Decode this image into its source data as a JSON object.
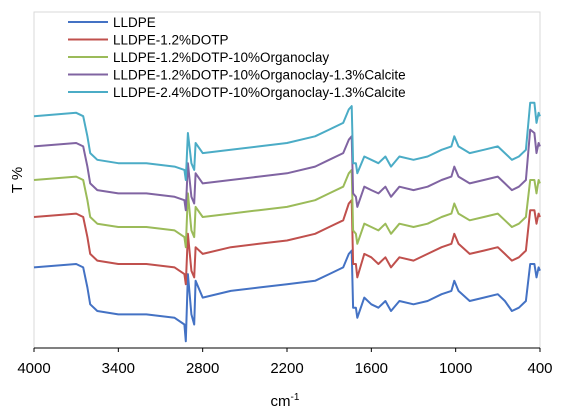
{
  "chart_data": {
    "type": "line",
    "title": "",
    "xlabel": "cm",
    "xlabel_sup": "-1",
    "ylabel": "T %",
    "xlim": [
      4000,
      400
    ],
    "x_reversed": true,
    "x_ticks": [
      4000,
      3400,
      2800,
      2200,
      1600,
      1000,
      400
    ],
    "y_ticks_shown": false,
    "grid": false,
    "legend_position": "top-left",
    "series": [
      {
        "name": "LLDPE",
        "color": "#4472C4",
        "baseline_level": 0.24,
        "points": [
          [
            4000,
            0.24
          ],
          [
            3700,
            0.25
          ],
          [
            3650,
            0.24
          ],
          [
            3620,
            0.18
          ],
          [
            3600,
            0.13
          ],
          [
            3550,
            0.11
          ],
          [
            3400,
            0.1
          ],
          [
            3200,
            0.1
          ],
          [
            3000,
            0.09
          ],
          [
            2930,
            0.07
          ],
          [
            2920,
            0.02
          ],
          [
            2905,
            0.22
          ],
          [
            2880,
            0.1
          ],
          [
            2860,
            0.07
          ],
          [
            2850,
            0.2
          ],
          [
            2800,
            0.15
          ],
          [
            2600,
            0.17
          ],
          [
            2400,
            0.18
          ],
          [
            2200,
            0.19
          ],
          [
            2000,
            0.2
          ],
          [
            1900,
            0.22
          ],
          [
            1800,
            0.24
          ],
          [
            1760,
            0.28
          ],
          [
            1740,
            0.29
          ],
          [
            1730,
            0.12
          ],
          [
            1710,
            0.12
          ],
          [
            1700,
            0.09
          ],
          [
            1650,
            0.15
          ],
          [
            1600,
            0.13
          ],
          [
            1550,
            0.12
          ],
          [
            1500,
            0.14
          ],
          [
            1460,
            0.11
          ],
          [
            1400,
            0.14
          ],
          [
            1300,
            0.13
          ],
          [
            1200,
            0.14
          ],
          [
            1100,
            0.16
          ],
          [
            1030,
            0.17
          ],
          [
            1010,
            0.2
          ],
          [
            980,
            0.17
          ],
          [
            900,
            0.14
          ],
          [
            800,
            0.15
          ],
          [
            700,
            0.16
          ],
          [
            650,
            0.14
          ],
          [
            600,
            0.11
          ],
          [
            550,
            0.12
          ],
          [
            500,
            0.14
          ],
          [
            470,
            0.25
          ],
          [
            440,
            0.25
          ],
          [
            425,
            0.21
          ],
          [
            410,
            0.24
          ],
          [
            400,
            0.23
          ]
        ]
      },
      {
        "name": "LLDPE-1.2%DOTP",
        "color": "#C0504D",
        "baseline_level": 0.39,
        "points": [
          [
            4000,
            0.39
          ],
          [
            3700,
            0.4
          ],
          [
            3650,
            0.39
          ],
          [
            3620,
            0.33
          ],
          [
            3600,
            0.28
          ],
          [
            3550,
            0.26
          ],
          [
            3400,
            0.25
          ],
          [
            3200,
            0.25
          ],
          [
            3000,
            0.24
          ],
          [
            2930,
            0.22
          ],
          [
            2920,
            0.19
          ],
          [
            2905,
            0.34
          ],
          [
            2880,
            0.23
          ],
          [
            2860,
            0.21
          ],
          [
            2850,
            0.3
          ],
          [
            2800,
            0.28
          ],
          [
            2600,
            0.3
          ],
          [
            2400,
            0.31
          ],
          [
            2200,
            0.32
          ],
          [
            2000,
            0.34
          ],
          [
            1900,
            0.36
          ],
          [
            1800,
            0.38
          ],
          [
            1760,
            0.43
          ],
          [
            1740,
            0.44
          ],
          [
            1730,
            0.25
          ],
          [
            1710,
            0.25
          ],
          [
            1700,
            0.21
          ],
          [
            1650,
            0.28
          ],
          [
            1600,
            0.27
          ],
          [
            1550,
            0.25
          ],
          [
            1500,
            0.27
          ],
          [
            1460,
            0.24
          ],
          [
            1400,
            0.27
          ],
          [
            1300,
            0.26
          ],
          [
            1200,
            0.28
          ],
          [
            1100,
            0.3
          ],
          [
            1030,
            0.31
          ],
          [
            1010,
            0.34
          ],
          [
            980,
            0.31
          ],
          [
            900,
            0.28
          ],
          [
            800,
            0.29
          ],
          [
            700,
            0.3
          ],
          [
            650,
            0.28
          ],
          [
            600,
            0.26
          ],
          [
            550,
            0.27
          ],
          [
            500,
            0.29
          ],
          [
            470,
            0.41
          ],
          [
            440,
            0.41
          ],
          [
            425,
            0.37
          ],
          [
            410,
            0.4
          ],
          [
            400,
            0.39
          ]
        ]
      },
      {
        "name": "LLDPE-1.2%DOTP-10%Organoclay",
        "color": "#9BBB59",
        "baseline_level": 0.5,
        "points": [
          [
            4000,
            0.5
          ],
          [
            3700,
            0.51
          ],
          [
            3650,
            0.5
          ],
          [
            3620,
            0.44
          ],
          [
            3600,
            0.39
          ],
          [
            3550,
            0.37
          ],
          [
            3400,
            0.36
          ],
          [
            3200,
            0.36
          ],
          [
            3000,
            0.35
          ],
          [
            2930,
            0.33
          ],
          [
            2920,
            0.3
          ],
          [
            2905,
            0.46
          ],
          [
            2880,
            0.35
          ],
          [
            2860,
            0.33
          ],
          [
            2850,
            0.42
          ],
          [
            2800,
            0.39
          ],
          [
            2600,
            0.4
          ],
          [
            2400,
            0.41
          ],
          [
            2200,
            0.42
          ],
          [
            2000,
            0.44
          ],
          [
            1900,
            0.46
          ],
          [
            1800,
            0.48
          ],
          [
            1760,
            0.52
          ],
          [
            1740,
            0.53
          ],
          [
            1730,
            0.35
          ],
          [
            1710,
            0.34
          ],
          [
            1700,
            0.31
          ],
          [
            1650,
            0.37
          ],
          [
            1600,
            0.36
          ],
          [
            1550,
            0.35
          ],
          [
            1500,
            0.37
          ],
          [
            1460,
            0.34
          ],
          [
            1400,
            0.37
          ],
          [
            1300,
            0.36
          ],
          [
            1200,
            0.37
          ],
          [
            1100,
            0.39
          ],
          [
            1030,
            0.4
          ],
          [
            1010,
            0.43
          ],
          [
            980,
            0.4
          ],
          [
            900,
            0.38
          ],
          [
            800,
            0.39
          ],
          [
            700,
            0.4
          ],
          [
            650,
            0.38
          ],
          [
            600,
            0.36
          ],
          [
            550,
            0.37
          ],
          [
            500,
            0.39
          ],
          [
            470,
            0.5
          ],
          [
            440,
            0.5
          ],
          [
            425,
            0.46
          ],
          [
            410,
            0.5
          ],
          [
            400,
            0.49
          ]
        ]
      },
      {
        "name": "LLDPE-1.2%DOTP-10%Organoclay-1.3%Calcite",
        "color": "#8064A2",
        "baseline_level": 0.6,
        "points": [
          [
            4000,
            0.6
          ],
          [
            3700,
            0.61
          ],
          [
            3650,
            0.6
          ],
          [
            3620,
            0.54
          ],
          [
            3600,
            0.49
          ],
          [
            3550,
            0.47
          ],
          [
            3400,
            0.46
          ],
          [
            3200,
            0.46
          ],
          [
            3000,
            0.45
          ],
          [
            2930,
            0.44
          ],
          [
            2920,
            0.41
          ],
          [
            2905,
            0.55
          ],
          [
            2880,
            0.45
          ],
          [
            2860,
            0.43
          ],
          [
            2850,
            0.52
          ],
          [
            2800,
            0.49
          ],
          [
            2600,
            0.5
          ],
          [
            2400,
            0.51
          ],
          [
            2200,
            0.52
          ],
          [
            2000,
            0.54
          ],
          [
            1900,
            0.56
          ],
          [
            1800,
            0.58
          ],
          [
            1760,
            0.62
          ],
          [
            1740,
            0.63
          ],
          [
            1730,
            0.46
          ],
          [
            1710,
            0.45
          ],
          [
            1700,
            0.42
          ],
          [
            1650,
            0.48
          ],
          [
            1600,
            0.47
          ],
          [
            1550,
            0.46
          ],
          [
            1500,
            0.48
          ],
          [
            1460,
            0.45
          ],
          [
            1400,
            0.48
          ],
          [
            1300,
            0.47
          ],
          [
            1200,
            0.48
          ],
          [
            1100,
            0.5
          ],
          [
            1030,
            0.51
          ],
          [
            1010,
            0.54
          ],
          [
            980,
            0.51
          ],
          [
            900,
            0.49
          ],
          [
            800,
            0.5
          ],
          [
            700,
            0.51
          ],
          [
            650,
            0.49
          ],
          [
            600,
            0.47
          ],
          [
            550,
            0.48
          ],
          [
            500,
            0.5
          ],
          [
            470,
            0.65
          ],
          [
            440,
            0.64
          ],
          [
            425,
            0.58
          ],
          [
            410,
            0.61
          ],
          [
            400,
            0.6
          ]
        ]
      },
      {
        "name": "LLDPE-2.4%DOTP-10%Organoclay-1.3%Calcite",
        "color": "#4BACC6",
        "baseline_level": 0.69,
        "points": [
          [
            4000,
            0.69
          ],
          [
            3700,
            0.7
          ],
          [
            3650,
            0.69
          ],
          [
            3620,
            0.63
          ],
          [
            3600,
            0.58
          ],
          [
            3550,
            0.56
          ],
          [
            3400,
            0.55
          ],
          [
            3200,
            0.55
          ],
          [
            3000,
            0.54
          ],
          [
            2930,
            0.53
          ],
          [
            2920,
            0.5
          ],
          [
            2905,
            0.64
          ],
          [
            2880,
            0.55
          ],
          [
            2860,
            0.53
          ],
          [
            2850,
            0.61
          ],
          [
            2800,
            0.58
          ],
          [
            2600,
            0.59
          ],
          [
            2400,
            0.6
          ],
          [
            2200,
            0.61
          ],
          [
            2000,
            0.63
          ],
          [
            1900,
            0.65
          ],
          [
            1800,
            0.67
          ],
          [
            1760,
            0.71
          ],
          [
            1740,
            0.72
          ],
          [
            1730,
            0.55
          ],
          [
            1710,
            0.55
          ],
          [
            1700,
            0.52
          ],
          [
            1650,
            0.57
          ],
          [
            1600,
            0.56
          ],
          [
            1550,
            0.55
          ],
          [
            1500,
            0.57
          ],
          [
            1460,
            0.54
          ],
          [
            1400,
            0.57
          ],
          [
            1300,
            0.56
          ],
          [
            1200,
            0.57
          ],
          [
            1100,
            0.59
          ],
          [
            1030,
            0.6
          ],
          [
            1010,
            0.63
          ],
          [
            980,
            0.6
          ],
          [
            900,
            0.58
          ],
          [
            800,
            0.59
          ],
          [
            700,
            0.6
          ],
          [
            650,
            0.58
          ],
          [
            600,
            0.56
          ],
          [
            550,
            0.57
          ],
          [
            500,
            0.59
          ],
          [
            470,
            0.73
          ],
          [
            440,
            0.73
          ],
          [
            425,
            0.67
          ],
          [
            410,
            0.7
          ],
          [
            400,
            0.69
          ]
        ]
      }
    ]
  }
}
